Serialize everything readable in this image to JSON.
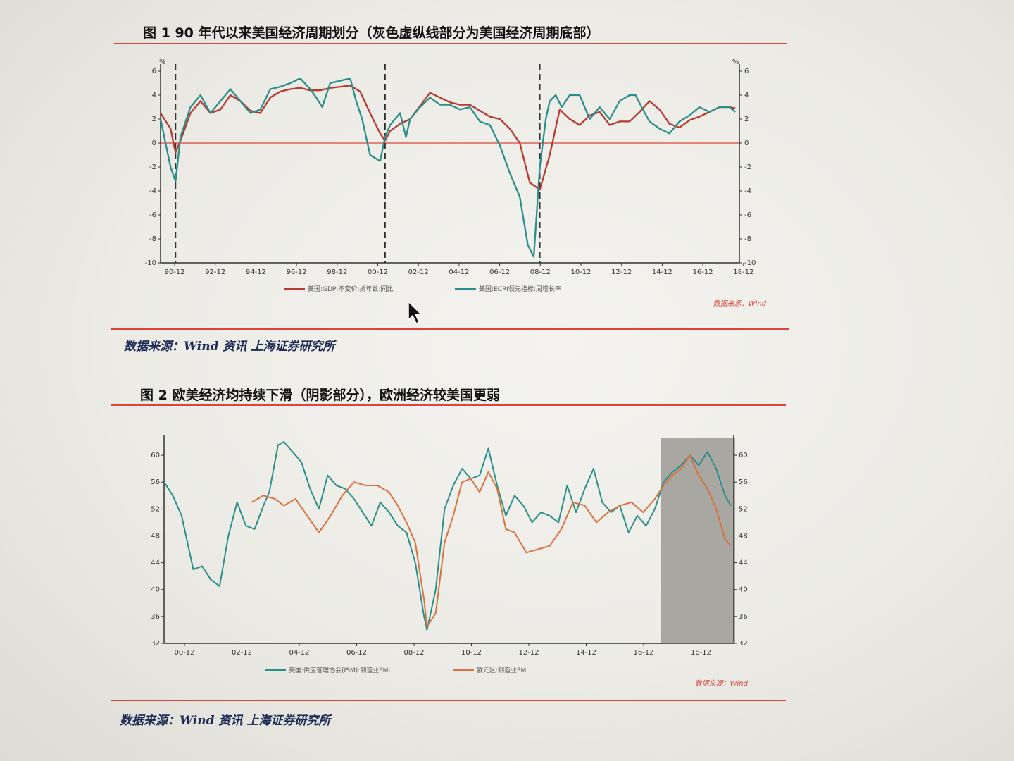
{
  "figures": [
    {
      "title": "图 1 90 年代以来美国经济周期划分（灰色虚纵线部分为美国经济周期底部）",
      "source": "数据来源：Wind 资讯 上海证券研究所",
      "watermark": "数据来源：Wind",
      "chart_data": {
        "type": "line",
        "x_ticks": [
          "90-12",
          "92-12",
          "94-12",
          "96-12",
          "98-12",
          "00-12",
          "02-12",
          "04-12",
          "06-12",
          "08-12",
          "10-12",
          "12-12",
          "14-12",
          "16-12",
          "18-12"
        ],
        "y_left_ticks": [
          "6",
          "4",
          "2",
          "0",
          "-2",
          "-4",
          "-6",
          "-8",
          "-10"
        ],
        "y_right_ticks": [
          "6",
          "4",
          "2",
          "0",
          "-2",
          "-4",
          "-6",
          "-8",
          "-10"
        ],
        "ylim": [
          -10,
          6
        ],
        "unit_left": "%",
        "unit_right": "%",
        "x_range": [
          1990.5,
          2019.5
        ],
        "dashed_lines": [
          1991.25,
          2001.75,
          2009.5
        ],
        "legend": [
          "美国:GDP:不变价:折年数:同比",
          "美国:ECRI领先指标:周增长率"
        ],
        "series": [
          {
            "name": "美国:GDP:不变价:折年数:同比",
            "color": "#b83a2e",
            "x": [
              1990.5,
              1991.0,
              1991.25,
              1991.5,
              1992.0,
              1992.5,
              1993.0,
              1993.5,
              1994.0,
              1994.5,
              1995.0,
              1995.5,
              1996.0,
              1996.5,
              1997.0,
              1997.5,
              1998.0,
              1998.5,
              1999.0,
              1999.5,
              2000.0,
              2000.5,
              2001.0,
              2001.5,
              2001.75,
              2002.0,
              2002.5,
              2003.0,
              2003.5,
              2004.0,
              2004.5,
              2005.0,
              2005.5,
              2006.0,
              2006.5,
              2007.0,
              2007.5,
              2008.0,
              2008.5,
              2009.0,
              2009.5,
              2010.0,
              2010.5,
              2011.0,
              2011.5,
              2012.0,
              2012.5,
              2013.0,
              2013.5,
              2014.0,
              2014.5,
              2015.0,
              2015.5,
              2016.0,
              2016.5,
              2017.0,
              2017.5,
              2018.0,
              2018.5,
              2019.0,
              2019.3
            ],
            "y": [
              2.5,
              1.2,
              -0.8,
              0.2,
              2.5,
              3.5,
              2.5,
              2.8,
              4.0,
              3.5,
              2.7,
              2.5,
              3.8,
              4.3,
              4.5,
              4.6,
              4.4,
              4.4,
              4.6,
              4.7,
              4.8,
              4.3,
              2.5,
              0.8,
              0.2,
              1.0,
              1.6,
              2.0,
              3.1,
              4.2,
              3.8,
              3.4,
              3.2,
              3.2,
              2.7,
              2.2,
              2.0,
              1.2,
              0.0,
              -3.3,
              -3.9,
              -1.0,
              2.8,
              2.0,
              1.5,
              2.3,
              2.6,
              1.5,
              1.8,
              1.8,
              2.6,
              3.5,
              2.8,
              1.6,
              1.3,
              1.9,
              2.2,
              2.6,
              3.0,
              3.0,
              2.9
            ]
          },
          {
            "name": "美国:ECRI领先指标:周增长率",
            "color": "#2a8f8a",
            "x": [
              1990.5,
              1990.75,
              1991.0,
              1991.25,
              1991.5,
              1992.0,
              1992.5,
              1993.0,
              1993.5,
              1994.0,
              1994.5,
              1995.0,
              1995.5,
              1996.0,
              1996.5,
              1997.0,
              1997.5,
              1998.0,
              1998.3,
              1998.6,
              1999.0,
              1999.5,
              2000.0,
              2000.3,
              2000.6,
              2001.0,
              2001.5,
              2001.75,
              2002.0,
              2002.5,
              2002.8,
              2003.0,
              2003.5,
              2004.0,
              2004.5,
              2005.0,
              2005.5,
              2006.0,
              2006.5,
              2007.0,
              2007.5,
              2008.0,
              2008.5,
              2008.9,
              2009.2,
              2009.5,
              2009.8,
              2010.0,
              2010.3,
              2010.6,
              2011.0,
              2011.5,
              2012.0,
              2012.5,
              2013.0,
              2013.5,
              2014.0,
              2014.3,
              2014.6,
              2015.0,
              2015.5,
              2016.0,
              2016.5,
              2017.0,
              2017.5,
              2018.0,
              2018.5,
              2019.0,
              2019.3
            ],
            "y": [
              2.0,
              0.0,
              -2.0,
              -3.2,
              0.5,
              3.0,
              4.0,
              2.5,
              3.5,
              4.5,
              3.5,
              2.5,
              2.8,
              4.5,
              4.7,
              5.0,
              5.4,
              4.5,
              3.8,
              3.0,
              5.0,
              5.2,
              5.4,
              3.5,
              2.0,
              -1.0,
              -1.5,
              0.5,
              1.5,
              2.5,
              0.5,
              2.0,
              3.0,
              3.8,
              3.2,
              3.2,
              2.8,
              3.0,
              1.8,
              1.5,
              -0.2,
              -2.5,
              -4.5,
              -8.5,
              -9.5,
              -2.0,
              2.0,
              3.5,
              4.0,
              3.0,
              4.0,
              4.0,
              2.0,
              3.0,
              2.0,
              3.5,
              4.0,
              4.0,
              3.0,
              1.8,
              1.2,
              0.8,
              1.8,
              2.3,
              3.0,
              2.6,
              3.0,
              3.0,
              2.6
            ]
          }
        ]
      }
    },
    {
      "title": "图 2 欧美经济均持续下滑（阴影部分），欧洲经济较美国更弱",
      "source": "数据来源：Wind 资讯 上海证券研究所",
      "watermark": "数据来源：Wind",
      "chart_data": {
        "type": "line",
        "x_ticks": [
          "00-12",
          "02-12",
          "04-12",
          "06-12",
          "08-12",
          "10-12",
          "12-12",
          "14-12",
          "16-12",
          "18-12"
        ],
        "y_left_ticks": [
          "60",
          "56",
          "52",
          "48",
          "44",
          "40",
          "36",
          "32"
        ],
        "y_right_ticks": [
          "60",
          "56",
          "52",
          "48",
          "44",
          "40",
          "36",
          "32"
        ],
        "ylim": [
          32,
          62
        ],
        "x_range": [
          2000.0,
          2019.5
        ],
        "shaded_region": [
          2017.0,
          2019.5
        ],
        "legend": [
          "美国:供应管理协会(ISM):制造业PMI",
          "欧元区:制造业PMI"
        ],
        "series": [
          {
            "name": "美国:供应管理协会(ISM):制造业PMI",
            "color": "#2a8f8a",
            "x": [
              2000.0,
              2000.3,
              2000.6,
              2001.0,
              2001.3,
              2001.6,
              2001.9,
              2002.2,
              2002.5,
              2002.8,
              2003.1,
              2003.4,
              2003.6,
              2003.9,
              2004.1,
              2004.4,
              2004.7,
              2005.0,
              2005.3,
              2005.6,
              2005.9,
              2006.2,
              2006.5,
              2006.8,
              2007.1,
              2007.4,
              2007.7,
              2008.0,
              2008.3,
              2008.6,
              2008.9,
              2009.0,
              2009.3,
              2009.6,
              2009.9,
              2010.2,
              2010.5,
              2010.8,
              2011.1,
              2011.4,
              2011.7,
              2012.0,
              2012.3,
              2012.6,
              2012.9,
              2013.2,
              2013.5,
              2013.8,
              2014.1,
              2014.4,
              2014.7,
              2015.0,
              2015.3,
              2015.6,
              2015.9,
              2016.2,
              2016.5,
              2016.8,
              2017.1,
              2017.4,
              2017.7,
              2018.0,
              2018.3,
              2018.6,
              2018.9,
              2019.2,
              2019.4
            ],
            "y": [
              56.0,
              54.0,
              51.0,
              43.0,
              43.5,
              41.5,
              40.5,
              48.0,
              53.0,
              49.5,
              49.0,
              52.5,
              54.5,
              61.5,
              62.0,
              60.5,
              59.0,
              55.0,
              52.0,
              57.0,
              55.5,
              55.0,
              53.5,
              51.5,
              49.5,
              53.0,
              51.5,
              49.5,
              48.5,
              44.0,
              36.0,
              34.0,
              40.0,
              52.0,
              55.5,
              58.0,
              56.5,
              57.0,
              61.0,
              55.5,
              51.0,
              54.0,
              52.5,
              50.0,
              51.5,
              51.0,
              50.0,
              55.5,
              51.5,
              55.0,
              58.0,
              53.0,
              51.5,
              52.5,
              48.5,
              51.0,
              49.5,
              52.0,
              56.0,
              57.5,
              58.5,
              60.0,
              58.5,
              60.5,
              58.0,
              54.0,
              52.5
            ]
          },
          {
            "name": "欧元区:制造业PMI",
            "color": "#d9733d",
            "x": [
              2003.0,
              2003.4,
              2003.8,
              2004.1,
              2004.5,
              2004.9,
              2005.3,
              2005.7,
              2006.1,
              2006.5,
              2006.9,
              2007.3,
              2007.7,
              2008.0,
              2008.3,
              2008.6,
              2008.9,
              2009.0,
              2009.3,
              2009.6,
              2009.9,
              2010.2,
              2010.5,
              2010.8,
              2011.1,
              2011.4,
              2011.7,
              2012.0,
              2012.4,
              2012.8,
              2013.2,
              2013.6,
              2014.0,
              2014.4,
              2014.8,
              2015.2,
              2015.6,
              2016.0,
              2016.4,
              2016.8,
              2017.1,
              2017.4,
              2017.7,
              2018.0,
              2018.3,
              2018.6,
              2018.9,
              2019.2,
              2019.4
            ],
            "y": [
              53.0,
              54.0,
              53.5,
              52.5,
              53.5,
              51.0,
              48.5,
              51.0,
              54.0,
              56.0,
              55.5,
              55.5,
              54.5,
              52.5,
              50.0,
              47.0,
              38.5,
              34.5,
              36.5,
              47.0,
              51.0,
              56.0,
              56.5,
              54.5,
              57.5,
              55.0,
              49.0,
              48.5,
              45.5,
              46.0,
              46.5,
              49.0,
              53.0,
              52.5,
              50.0,
              51.5,
              52.5,
              53.0,
              51.5,
              53.5,
              55.5,
              57.0,
              58.0,
              60.0,
              57.0,
              55.0,
              52.0,
              47.5,
              46.5
            ]
          }
        ]
      }
    }
  ]
}
